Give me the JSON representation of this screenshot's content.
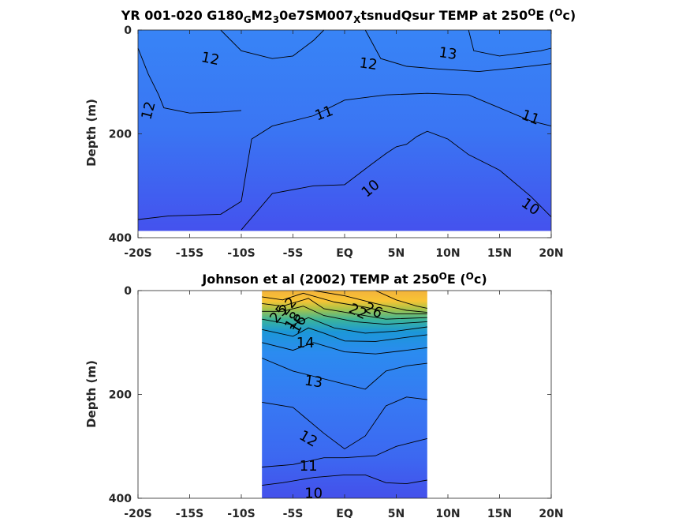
{
  "chart_data": [
    {
      "type": "contour",
      "title": {
        "segments": [
          {
            "t": "YR 001-020 G180"
          },
          {
            "t": "G",
            "sub": true
          },
          {
            "t": "M2"
          },
          {
            "t": "3",
            "sub": true
          },
          {
            "t": "0e7SM007"
          },
          {
            "t": "X",
            "sub": true
          },
          {
            "t": "tsnudQsur TEMP at 250"
          },
          {
            "t": "O",
            "sup": true
          },
          {
            "t": "E ("
          },
          {
            "t": "O",
            "sup": true
          },
          {
            "t": "c)"
          }
        ]
      },
      "ylabel": "Depth (m)",
      "xlim": [
        -20,
        20
      ],
      "ylim": [
        0,
        400
      ],
      "y_reversed": true,
      "xticks": [
        -20,
        -15,
        -10,
        -5,
        0,
        5,
        10,
        15,
        20
      ],
      "xtick_labels": [
        "-20S",
        "-15S",
        "-10S",
        "-5S",
        "EQ",
        "5N",
        "10N",
        "15N",
        "20N"
      ],
      "yticks": [
        0,
        200,
        400
      ],
      "ytick_labels": [
        "0",
        "200",
        "400"
      ],
      "data_extent": {
        "lat": [
          -20,
          20
        ],
        "depth": [
          0,
          387
        ]
      },
      "contours": [
        {
          "level": 12,
          "points": [
            [
              -20,
              35
            ],
            [
              -19,
              85
            ],
            [
              -18,
              125
            ],
            [
              -17.5,
              150
            ],
            [
              -15,
              160
            ],
            [
              -12,
              158
            ],
            [
              -10,
              155
            ]
          ]
        },
        {
          "level": 12,
          "points": [
            [
              -12,
              0
            ],
            [
              -10,
              40
            ],
            [
              -7,
              55
            ],
            [
              -5,
              50
            ],
            [
              -3,
              20
            ],
            [
              -2,
              0
            ]
          ]
        },
        {
          "level": 12,
          "points": [
            [
              2,
              0
            ],
            [
              3.5,
              55
            ],
            [
              6,
              70
            ],
            [
              9,
              75
            ],
            [
              13,
              80
            ],
            [
              17,
              72
            ],
            [
              20,
              65
            ]
          ]
        },
        {
          "level": 11,
          "points": [
            [
              -20,
              365
            ],
            [
              -17,
              358
            ],
            [
              -12,
              355
            ],
            [
              -10,
              330
            ],
            [
              -9,
              210
            ],
            [
              -7,
              185
            ],
            [
              -3,
              165
            ],
            [
              0,
              135
            ],
            [
              4,
              125
            ],
            [
              8,
              122
            ],
            [
              12,
              125
            ],
            [
              15,
              150
            ],
            [
              18,
              175
            ],
            [
              20,
              185
            ]
          ]
        },
        {
          "level": 10,
          "points": [
            [
              -10,
              385
            ],
            [
              -7,
              315
            ],
            [
              -3,
              300
            ],
            [
              0,
              298
            ],
            [
              2.5,
              260
            ],
            [
              4,
              238
            ],
            [
              5,
              225
            ],
            [
              6,
              220
            ],
            [
              7,
              205
            ],
            [
              8,
              195
            ],
            [
              10,
              210
            ],
            [
              12,
              240
            ],
            [
              15,
              270
            ],
            [
              18,
              320
            ],
            [
              20,
              360
            ]
          ]
        },
        {
          "level": 13,
          "points": [
            [
              12,
              0
            ],
            [
              12.5,
              40
            ],
            [
              15,
              50
            ],
            [
              19,
              40
            ],
            [
              20,
              35
            ]
          ]
        }
      ],
      "contour_labels": [
        {
          "text": "12",
          "lat": -13,
          "depth": 55,
          "angle": 12
        },
        {
          "text": "12",
          "lat": -19,
          "depth": 155,
          "angle": -75
        },
        {
          "text": "12",
          "lat": 2.3,
          "depth": 65,
          "angle": 8
        },
        {
          "text": "13",
          "lat": 10,
          "depth": 45,
          "angle": 8
        },
        {
          "text": "11",
          "lat": -2,
          "depth": 160,
          "angle": -20
        },
        {
          "text": "11",
          "lat": 18,
          "depth": 168,
          "angle": 20
        },
        {
          "text": "10",
          "lat": 2.5,
          "depth": 305,
          "angle": -40
        },
        {
          "text": "10",
          "lat": 18,
          "depth": 340,
          "angle": 35
        }
      ]
    },
    {
      "type": "contour",
      "title": {
        "segments": [
          {
            "t": "Johnson et al (2002) TEMP at 250"
          },
          {
            "t": "O",
            "sup": true
          },
          {
            "t": "E ("
          },
          {
            "t": "O",
            "sup": true
          },
          {
            "t": "c)"
          }
        ]
      },
      "ylabel": "Depth (m)",
      "xlim": [
        -20,
        20
      ],
      "ylim": [
        0,
        400
      ],
      "y_reversed": true,
      "xticks": [
        -20,
        -15,
        -10,
        -5,
        0,
        5,
        10,
        15,
        20
      ],
      "xtick_labels": [
        "-20S",
        "-15S",
        "-10S",
        "-5S",
        "EQ",
        "5N",
        "10N",
        "15N",
        "20N"
      ],
      "yticks": [
        0,
        200,
        400
      ],
      "ytick_labels": [
        "0",
        "200",
        "400"
      ],
      "data_extent": {
        "lat": [
          -8,
          8
        ],
        "depth": [
          0,
          400
        ]
      },
      "contours": [
        {
          "level": 10,
          "points": [
            [
              -8,
              375
            ],
            [
              -6,
              370
            ],
            [
              -3,
              360
            ],
            [
              0,
              355
            ],
            [
              2,
              355
            ],
            [
              4,
              370
            ],
            [
              6,
              372
            ],
            [
              8,
              365
            ]
          ]
        },
        {
          "level": 11,
          "points": [
            [
              -8,
              340
            ],
            [
              -5,
              335
            ],
            [
              -2,
              322
            ],
            [
              0,
              322
            ],
            [
              3,
              318
            ],
            [
              5,
              300
            ],
            [
              7,
              290
            ],
            [
              8,
              285
            ]
          ]
        },
        {
          "level": 12,
          "points": [
            [
              -8,
              215
            ],
            [
              -5,
              225
            ],
            [
              -2,
              275
            ],
            [
              0,
              305
            ],
            [
              2,
              280
            ],
            [
              4,
              222
            ],
            [
              6,
              205
            ],
            [
              8,
              210
            ]
          ]
        },
        {
          "level": 13,
          "points": [
            [
              -8,
              130
            ],
            [
              -5,
              155
            ],
            [
              -3,
              165
            ],
            [
              0,
              180
            ],
            [
              2,
              190
            ],
            [
              4,
              155
            ],
            [
              6,
              145
            ],
            [
              8,
              140
            ]
          ]
        },
        {
          "level": 14,
          "points": [
            [
              -8,
              100
            ],
            [
              -5,
              115
            ],
            [
              -3,
              100
            ],
            [
              0,
              118
            ],
            [
              3,
              122
            ],
            [
              6,
              115
            ],
            [
              8,
              110
            ]
          ]
        },
        {
          "level": 16,
          "points": [
            [
              -8,
              75
            ],
            [
              -5,
              88
            ],
            [
              -3.5,
              72
            ],
            [
              -2,
              82
            ],
            [
              0,
              97
            ],
            [
              3,
              98
            ],
            [
              6,
              90
            ],
            [
              8,
              85
            ]
          ]
        },
        {
          "level": 18,
          "points": [
            [
              -8,
              55
            ],
            [
              -5,
              66
            ],
            [
              -3.5,
              52
            ],
            [
              -1,
              72
            ],
            [
              2,
              82
            ],
            [
              5,
              78
            ],
            [
              8,
              70
            ]
          ]
        },
        {
          "level": 20,
          "points": [
            [
              -8,
              40
            ],
            [
              -6,
              40
            ],
            [
              -4,
              30
            ],
            [
              -2,
              48
            ],
            [
              1,
              60
            ],
            [
              4,
              65
            ],
            [
              8,
              60
            ]
          ]
        },
        {
          "level": 22,
          "points": [
            [
              -8,
              25
            ],
            [
              -6,
              30
            ],
            [
              -3.5,
              15
            ],
            [
              -2,
              35
            ],
            [
              1,
              45
            ],
            [
              4,
              55
            ],
            [
              8,
              52
            ]
          ]
        },
        {
          "level": 24,
          "points": [
            [
              -8,
              12
            ],
            [
              -6,
              18
            ],
            [
              -4,
              5
            ],
            [
              -1,
              22
            ],
            [
              2,
              32
            ],
            [
              5,
              45
            ],
            [
              8,
              45
            ]
          ]
        },
        {
          "level": 25,
          "points": [
            [
              -3,
              0
            ],
            [
              0,
              10
            ],
            [
              3,
              25
            ],
            [
              6,
              38
            ],
            [
              8,
              42
            ]
          ]
        },
        {
          "level": 26,
          "points": [
            [
              3,
              0
            ],
            [
              5,
              18
            ],
            [
              7,
              30
            ],
            [
              8,
              34
            ]
          ]
        }
      ],
      "contour_labels": [
        {
          "text": "25",
          "lat": -6.4,
          "depth": 45,
          "angle": -50
        },
        {
          "text": "22",
          "lat": -5.5,
          "depth": 30,
          "angle": -50
        },
        {
          "text": "18",
          "lat": -5,
          "depth": 58,
          "angle": -60
        },
        {
          "text": "16",
          "lat": -4.5,
          "depth": 65,
          "angle": -60
        },
        {
          "text": "14",
          "lat": -3.8,
          "depth": 100,
          "angle": 0
        },
        {
          "text": "22",
          "lat": 1.3,
          "depth": 40,
          "angle": 25
        },
        {
          "text": "26",
          "lat": 2.8,
          "depth": 38,
          "angle": 25
        },
        {
          "text": "13",
          "lat": -3,
          "depth": 175,
          "angle": 8
        },
        {
          "text": "12",
          "lat": -3.5,
          "depth": 285,
          "angle": 30
        },
        {
          "text": "11",
          "lat": -3.5,
          "depth": 338,
          "angle": 0
        },
        {
          "text": "10",
          "lat": -3,
          "depth": 390,
          "angle": 0
        }
      ]
    }
  ]
}
